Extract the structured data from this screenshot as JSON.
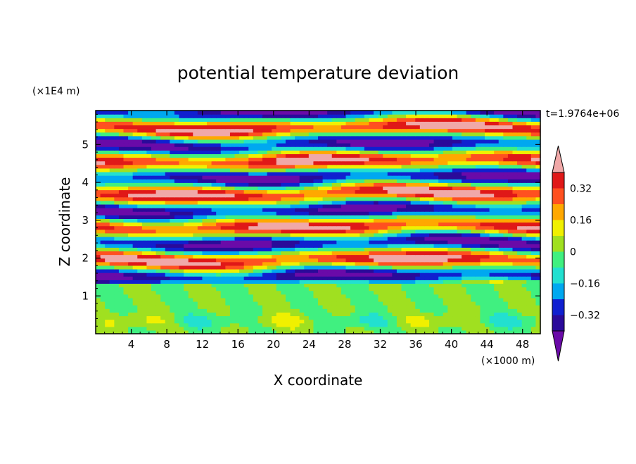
{
  "chart_data": {
    "type": "heatmap",
    "title": "potential temperature deviation",
    "xlabel": "X coordinate",
    "ylabel": "Z coordinate",
    "x_unit": "(×1000 m)",
    "y_unit": "(×1E4 m)",
    "time_label": "t=1.9764e+06",
    "xlim": [
      0,
      50
    ],
    "ylim": [
      0,
      5.9
    ],
    "x_ticks": [
      "4",
      "8",
      "12",
      "16",
      "20",
      "24",
      "28",
      "32",
      "36",
      "40",
      "44",
      "48"
    ],
    "y_ticks": [
      "1",
      "2",
      "3",
      "4",
      "5"
    ],
    "colorbar": {
      "labels": [
        "0.32",
        "0.16",
        "0",
        "−0.16",
        "−0.32"
      ],
      "levels": [
        -0.4,
        -0.32,
        -0.24,
        -0.16,
        -0.08,
        0,
        0.08,
        0.16,
        0.24,
        0.32,
        0.4
      ],
      "colors": [
        "#6a0aa8",
        "#2a0a9a",
        "#1020d0",
        "#00a8f0",
        "#22e0d0",
        "#40f080",
        "#a0e020",
        "#f0f000",
        "#ffa800",
        "#ff5020",
        "#e01818",
        "#f0a8a8"
      ]
    }
  }
}
